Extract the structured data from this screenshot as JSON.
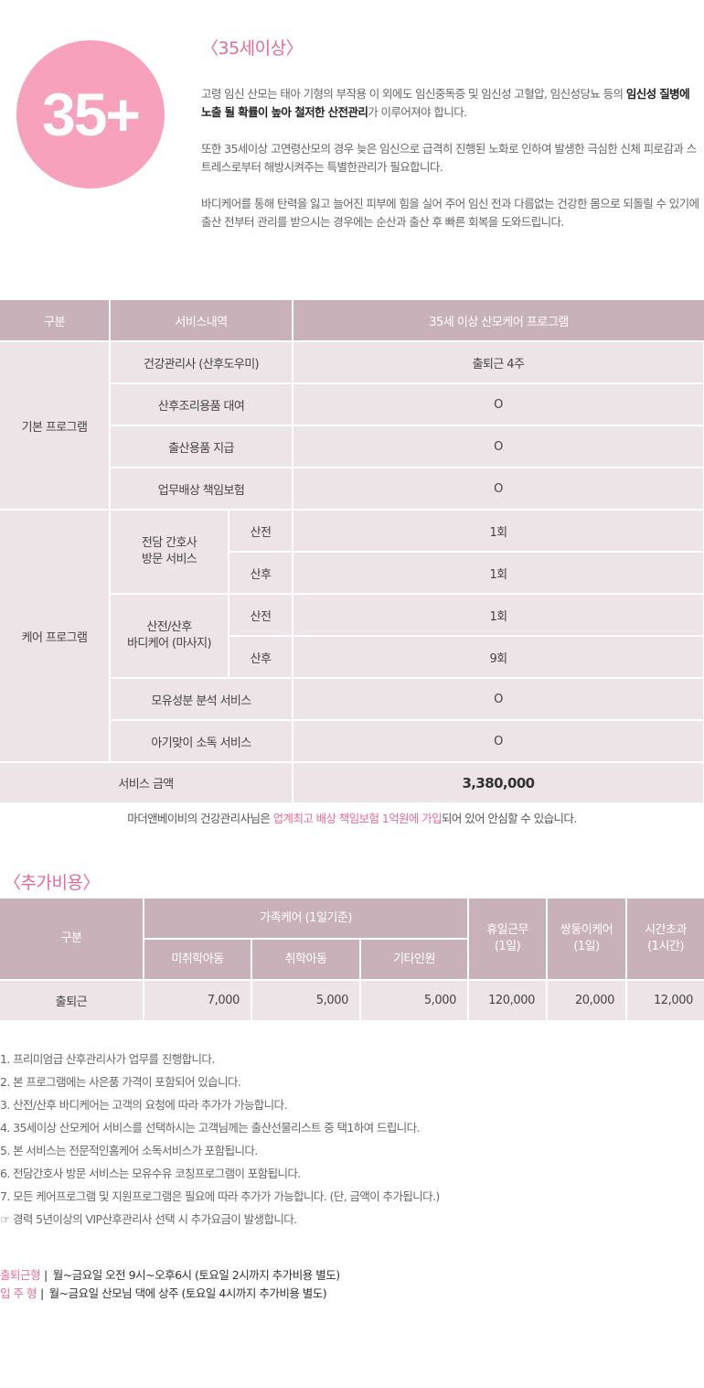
{
  "badge": "35+",
  "intro": {
    "title": "〈35세이상〉",
    "p1_pre": "고령 임신 산모는 태아 기형의 부작용 이 외에도 임신중독증 및 임신성 고혈압, 임신성당뇨 등의 ",
    "p1_bold": "임신성 질병에 노출 될 확률이 높아 철저한 산전관리",
    "p1_post": "가 이루어져야 합니다.",
    "p2": "또한 35세이상 고연령산모의 경우 늦은 임신으로 급격히 진행된 노화로 인하여 발생한 극심한 신체 피로감과 스트레스로부터 해방시켜주는 특별한관리가 필요합니다.",
    "p3": "바디케어를 통해 탄력을 잃고 늘어진 피부에 힘을 실어 주어 임신 전과 다름없는 건강한 몸으로 되돌릴 수 있기에 출산 전부터 관리를 받으시는 경우에는 순산과 출산 후 빠른 회복을 도와드립니다."
  },
  "main_table": {
    "headers": [
      "구분",
      "서비스내역",
      "35세 이상 산모케어 프로그램"
    ],
    "basic_group": "기본 프로그램",
    "basic_rows": [
      {
        "service": "건강관리사 (산후도우미)",
        "value": "출퇴근 4주"
      },
      {
        "service": "산후조리용품 대여",
        "value": "O"
      },
      {
        "service": "출산용품 지급",
        "value": "O"
      },
      {
        "service": "업무배상 책임보험",
        "value": "O"
      }
    ],
    "care_group": "케어 프로그램",
    "nurse_service": "전담 간호사\n방문 서비스",
    "body_service": "산전/산후\n바디케어 (마사지)",
    "care_rows": [
      {
        "sub": "산전",
        "value": "1회"
      },
      {
        "sub": "산후",
        "value": "1회"
      },
      {
        "sub": "산전",
        "value": "1회"
      },
      {
        "sub": "산후",
        "value": "9회"
      }
    ],
    "extra_rows": [
      {
        "service": "모유성분 분석 서비스",
        "value": "O"
      },
      {
        "service": "아기맞이 소독 서비스",
        "value": "O"
      }
    ],
    "total_label": "서비스 금액",
    "total_value": "3,380,000"
  },
  "notice": {
    "pre": "마더앤베이비의 건강관리사님은 ",
    "highlight": "업계최고 배상 책임보험 1억원에 가입",
    "post": "되어 있어 안심할 수 있습니다."
  },
  "extra": {
    "title": "〈추가비용〉",
    "header_category": "구분",
    "header_family": "가족케어 (1일기준)",
    "header_holiday": "휴일근무\n(1일)",
    "header_twins": "쌍둥이케어\n(1일)",
    "header_overtime": "시간초과\n(1시간)",
    "sub_headers": [
      "미취학아동",
      "취학아동",
      "기타인원"
    ],
    "row": {
      "label": "출퇴근",
      "values": [
        "7,000",
        "5,000",
        "5,000",
        "120,000",
        "20,000",
        "12,000"
      ]
    }
  },
  "notes": [
    "1. 프리미엄급 산후관리사가 업무를 진행합니다.",
    "2. 본 프로그램에는 사은품 가격이 포함되어 있습니다.",
    "3. 산전/산후 바디케어는 고객의 요청에 따라 추가가 가능합니다.",
    "4. 35세이상 산모케어 서비스를 선택하시는 고객님께는 출산선물리스트 중 택1하여 드립니다.",
    "5. 본 서비스는 전문적인홈케어 소독서비스가 포함됩니다.",
    "6. 전담간호사 방문 서비스는 모유수유 코칭프로그램이 포함됩니다.",
    "7. 모든 케어프로그램 및 지원프로그램은 필요에 따라 추가가 가능합니다. (단, 금액이 추가됩니다.)",
    "☞ 경력 5년이상의 VIP산후관리사 선택 시 추가요금이 발생합니다."
  ],
  "schedule": [
    {
      "type": "출퇴근형",
      "sep": "|",
      "text": "월~금요일 오전 9시~오후6시 (토요일 2시까지 추가비용 별도)"
    },
    {
      "type": "입 주 형",
      "sep": "|",
      "text": "월~금요일 산모님 댁에 상주 (토요일 4시까지 추가비용 별도)"
    }
  ],
  "colors": {
    "accent": "#e96b93",
    "badge": "#f8a1bd",
    "header": "#c9b1b9",
    "cell": "#ede4e7"
  }
}
